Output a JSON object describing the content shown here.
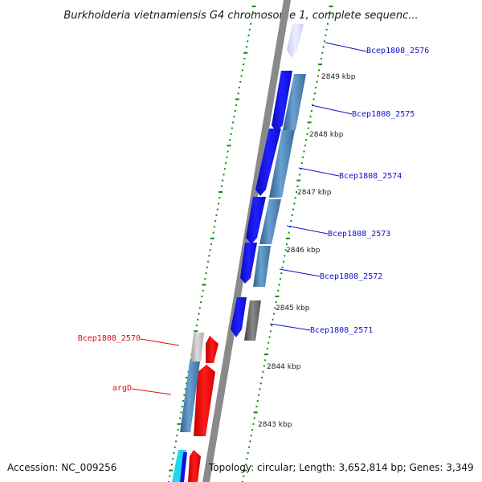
{
  "title": "Burkholderia vietnamiensis G4 chromosome 1, complete sequenc...",
  "scale_labels": [
    "2849 kbp",
    "2848 kbp",
    "2847 kbp",
    "2846 kbp",
    "2845 kbp",
    "2844 kbp",
    "2843 kbp"
  ],
  "gene_labels": {
    "right": [
      "Bcep1808_2576",
      "Bcep1808_2575",
      "Bcep1808_2574",
      "Bcep1808_2573",
      "Bcep1808_2572",
      "Bcep1808_2571"
    ],
    "left": [
      "Bcep1808_2570",
      "argD"
    ]
  },
  "footer": {
    "accession": "Accession: NC_009256",
    "stats": "Topology: circular; Length: 3,652,814 bp; Genes: 3,349"
  },
  "colors": {
    "backbone": "#8a8a8a",
    "tick_green": "#0a8a0a",
    "gene_blue": "#1010e6",
    "gene_steel": "#4a82b8",
    "gene_red": "#ee0000",
    "gene_gray": "#666666",
    "gene_lightgray": "#bbbbbb",
    "gene_cyan": "#22d6f0",
    "label_blue": "#1010c8",
    "label_red": "#d01010"
  }
}
